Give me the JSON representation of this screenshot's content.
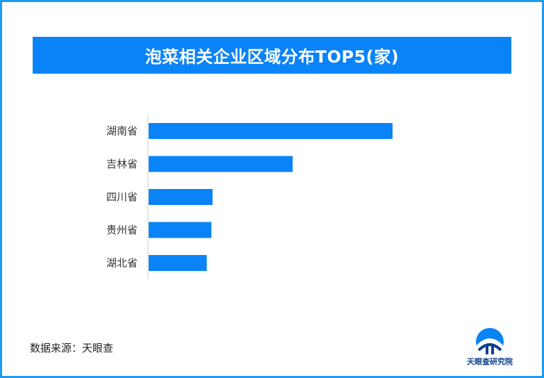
{
  "header": {
    "title": "泡菜相关企业区域分布TOP5(家)"
  },
  "chart_data": {
    "type": "bar",
    "orientation": "horizontal",
    "title": "泡菜相关企业区域分布TOP5(家)",
    "categories": [
      "湖南省",
      "吉林省",
      "四川省",
      "贵州省",
      "湖北省"
    ],
    "values": [
      420,
      248,
      110,
      108,
      100
    ],
    "bar_color": "#0a83f7",
    "grid": false,
    "xlim": [
      0,
      420
    ]
  },
  "footer": {
    "source": "数据来源：天眼查",
    "logo_text": "天眼查研究院"
  },
  "colors": {
    "accent": "#0a83f7",
    "border": "#1e9bf0",
    "logo_dark": "#0f3f8c"
  }
}
